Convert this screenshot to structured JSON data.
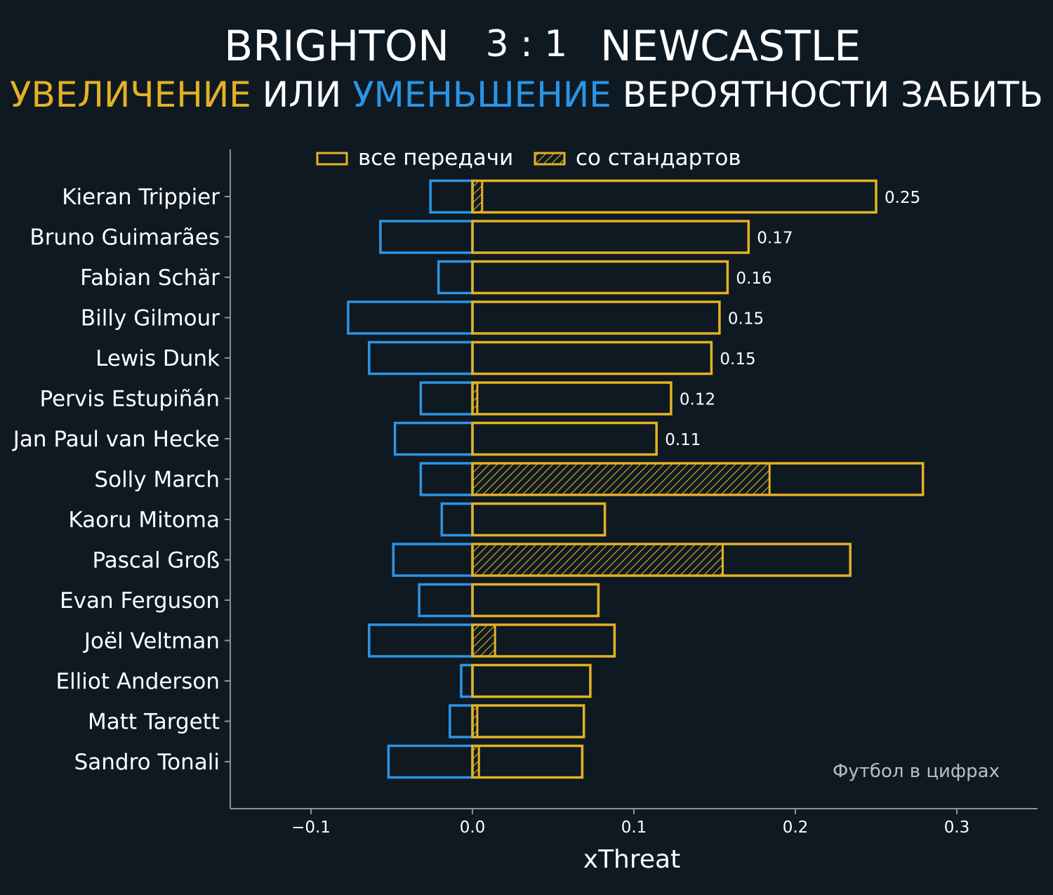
{
  "header": {
    "home_team": "BRIGHTON",
    "score": "3 : 1",
    "away_team": "NEWCASTLE",
    "subtitle_increase": "УВЕЛИЧЕНИЕ",
    "subtitle_or": "ИЛИ",
    "subtitle_decrease": "УМЕНЬШЕНИЕ",
    "subtitle_rest": "ВЕРОЯТНОСТИ ЗАБИТЬ"
  },
  "credit": "Футбол в цифрах",
  "colors": {
    "background": "#0f1922",
    "positive": "#e3b224",
    "negative": "#2a95e6",
    "axis": "#8a949c",
    "text": "#ffffff"
  },
  "chart_data": {
    "type": "bar",
    "orientation": "horizontal",
    "xlabel": "xThreat",
    "xlim": [
      -0.15,
      0.35
    ],
    "xticks": [
      -0.1,
      0.0,
      0.1,
      0.2,
      0.3
    ],
    "xtick_labels": [
      "−0.1",
      "0.0",
      "0.1",
      "0.2",
      "0.3"
    ],
    "legend": {
      "placement": "top",
      "entries": [
        "все передачи",
        "со стандартов"
      ]
    },
    "categories": [
      "Kieran Trippier",
      "Bruno Guimarães",
      "Fabian Schär",
      "Billy Gilmour",
      "Lewis Dunk",
      "Pervis Estupiñán",
      "Jan Paul van Hecke",
      "Solly March",
      "Kaoru Mitoma",
      "Pascal Groß",
      "Evan Ferguson",
      "Joël Veltman",
      "Elliot Anderson",
      "Matt Targett",
      "Sandro Tonali"
    ],
    "series": [
      {
        "name": "все передачи",
        "kind": "positive",
        "values": [
          0.25,
          0.171,
          0.158,
          0.153,
          0.148,
          0.123,
          0.114,
          0.279,
          0.082,
          0.234,
          0.078,
          0.088,
          0.073,
          0.069,
          0.068
        ]
      },
      {
        "kind": "negative",
        "values": [
          -0.026,
          -0.057,
          -0.021,
          -0.077,
          -0.064,
          -0.032,
          -0.048,
          -0.032,
          -0.019,
          -0.049,
          -0.033,
          -0.064,
          -0.007,
          -0.014,
          -0.052
        ]
      },
      {
        "name": "со стандартов",
        "kind": "hatched",
        "values": [
          0.006,
          0,
          0,
          0,
          0,
          0.003,
          0,
          0.184,
          0,
          0.155,
          0,
          0.014,
          0,
          0.003,
          0.004
        ]
      }
    ],
    "value_labels": [
      "0.25",
      "0.17",
      "0.16",
      "0.15",
      "0.15",
      "0.12",
      "0.11",
      "",
      "",
      "",
      "",
      "",
      "",
      "",
      ""
    ]
  }
}
